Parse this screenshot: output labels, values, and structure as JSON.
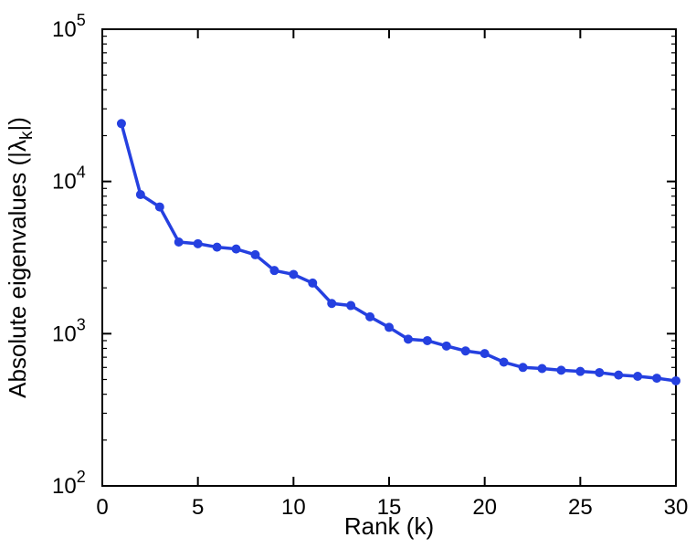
{
  "figure": {
    "background_color": "#ffffff",
    "axes_color": "#000000"
  },
  "chart_data": {
    "type": "line",
    "title": "",
    "xlabel": "Rank (k)",
    "ylabel": "Absolute eigenvalues (|λ_k|)",
    "ylabel_parts": {
      "pre": "Absolute eigenvalues (|λ",
      "sub": "k",
      "post": "|)"
    },
    "x": [
      1,
      2,
      3,
      4,
      5,
      6,
      7,
      8,
      9,
      10,
      11,
      12,
      13,
      14,
      15,
      16,
      17,
      18,
      19,
      20,
      21,
      22,
      23,
      24,
      25,
      26,
      27,
      28,
      29,
      30
    ],
    "y": [
      24000,
      8200,
      6800,
      4000,
      3900,
      3700,
      3600,
      3300,
      2600,
      2450,
      2150,
      1580,
      1530,
      1290,
      1100,
      920,
      900,
      830,
      770,
      740,
      650,
      600,
      590,
      575,
      565,
      555,
      535,
      525,
      510,
      490
    ],
    "xlim": [
      0,
      30
    ],
    "ylim": [
      100,
      100000
    ],
    "y_scale": "log",
    "x_ticks": [
      0,
      5,
      10,
      15,
      20,
      25,
      30
    ],
    "x_tick_labels": [
      "0",
      "5",
      "10",
      "15",
      "20",
      "25",
      "30"
    ],
    "y_tick_exponents": [
      2,
      3,
      4,
      5
    ],
    "y_tick_base": "10",
    "minor_ticks_y": true,
    "grid": false,
    "legend": null,
    "line_color": "#2540e0",
    "marker": "filled-circle",
    "marker_color": "#2540e0",
    "line_width": 3.5,
    "marker_radius": 4.5
  }
}
